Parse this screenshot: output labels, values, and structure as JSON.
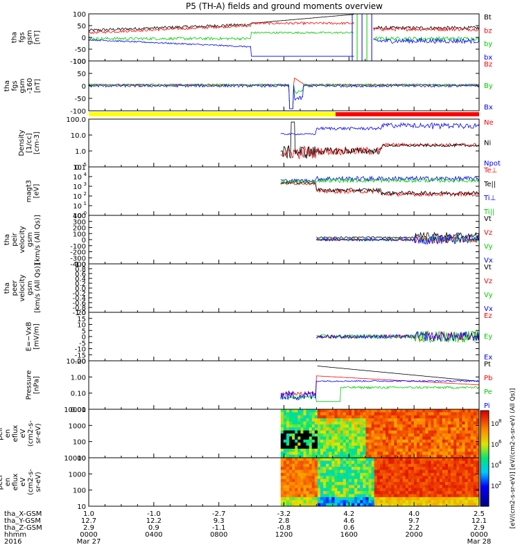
{
  "title": "P5 (TH-A) fields and ground moments overview",
  "colors": {
    "black": "#000000",
    "red": "#ff0000",
    "green": "#00cc00",
    "blue": "#0000ff",
    "yellow": "#ffff00"
  },
  "chart_data": [
    {
      "type": "line",
      "id": "fgs",
      "ylabel_lines": [
        "tha",
        "fgs",
        "gsm",
        "[nT]"
      ],
      "yticks": [
        "100",
        "50",
        "0",
        "-50",
        "-100"
      ],
      "ylim": [
        -100,
        100
      ],
      "series": [
        {
          "name": "Bt",
          "color": "black"
        },
        {
          "name": "bz",
          "color": "red"
        },
        {
          "name": "by",
          "color": "green"
        },
        {
          "name": "bx",
          "color": "blue"
        }
      ]
    },
    {
      "type": "line",
      "id": "fgs_dsl",
      "ylabel_lines": [
        "tha",
        "fgs",
        "gsm",
        "-160",
        "[nT]"
      ],
      "yticks": [
        "100",
        "50",
        "0",
        "-50",
        "-100"
      ],
      "ylim": [
        -120,
        120
      ],
      "series": [
        {
          "name": "Bz",
          "color": "red"
        },
        {
          "name": "By",
          "color": "green"
        },
        {
          "name": "Bx",
          "color": "blue"
        }
      ]
    },
    {
      "type": "line",
      "id": "density",
      "ylabel_lines": [
        "Density",
        "[1/cc]",
        "[cm-3]"
      ],
      "yticks": [
        "100.0",
        "10.0",
        "1.0",
        "0.1"
      ],
      "ylog": true,
      "ylim": [
        0.05,
        200
      ],
      "series": [
        {
          "name": "Ne",
          "color": "red"
        },
        {
          "name": "Ni",
          "color": "black"
        },
        {
          "name": "Npot",
          "color": "blue"
        }
      ]
    },
    {
      "type": "line",
      "id": "temp",
      "ylabel_lines": [
        "magt3",
        "[eV]"
      ],
      "yticks": [
        "10^5",
        "10^4",
        "10^3",
        "10^2",
        "10^1",
        "10^0"
      ],
      "ylog": true,
      "ylim": [
        1,
        100000
      ],
      "series": [
        {
          "name": "Te⊥",
          "color": "red"
        },
        {
          "name": "Te||",
          "color": "black"
        },
        {
          "name": "Ti⊥",
          "color": "blue"
        },
        {
          "name": "Ti||",
          "color": "green"
        }
      ]
    },
    {
      "type": "line",
      "id": "vel_i",
      "ylabel_lines": [
        "tha",
        "peir",
        "velocity",
        "gsm",
        "[km/s (All Qs)]"
      ],
      "yticks": [
        "400",
        "300",
        "200",
        "100",
        "0",
        "-100",
        "-200",
        "-300",
        "-400"
      ],
      "ylim": [
        -400,
        400
      ],
      "series": [
        {
          "name": "Vt",
          "color": "black"
        },
        {
          "name": "Vz",
          "color": "red"
        },
        {
          "name": "Vy",
          "color": "green"
        },
        {
          "name": "Vx",
          "color": "blue"
        }
      ]
    },
    {
      "type": "line",
      "id": "vel_e",
      "ylabel_lines": [
        "tha",
        "peer",
        "velocity",
        "gsm",
        "[km/s (All Qs)]"
      ],
      "yticks": [
        "1.0",
        "0.8",
        "0.6",
        "0.4",
        "0.2",
        "0.0",
        "-0.2",
        "-0.4",
        "-0.6",
        "-0.8",
        "-1.0"
      ],
      "ylim": [
        -1,
        1
      ],
      "series": [
        {
          "name": "Vt",
          "color": "black"
        },
        {
          "name": "Vz",
          "color": "red"
        },
        {
          "name": "Vy",
          "color": "green"
        },
        {
          "name": "Vx",
          "color": "blue"
        }
      ]
    },
    {
      "type": "line",
      "id": "efield",
      "ylabel_lines": [
        "E=−VxB",
        "[mV/m]"
      ],
      "yticks": [
        "20",
        "15",
        "10",
        "5",
        "0",
        "-5",
        "-10",
        "-15",
        "-20"
      ],
      "ylim": [
        -20,
        20
      ],
      "series": [
        {
          "name": "Ez",
          "color": "red"
        },
        {
          "name": "Ey",
          "color": "green"
        },
        {
          "name": "Ex",
          "color": "blue"
        }
      ]
    },
    {
      "type": "line",
      "id": "pressure",
      "ylabel_lines": [
        "Pressure",
        "[nPa]"
      ],
      "yticks": [
        "10.00",
        "1.00",
        "0.10",
        "0.01"
      ],
      "ylog": true,
      "ylim": [
        0.005,
        30
      ],
      "series": [
        {
          "name": "Pt",
          "color": "black"
        },
        {
          "name": "Pb",
          "color": "red"
        },
        {
          "name": "Pe",
          "color": "green"
        },
        {
          "name": "Pi",
          "color": "blue"
        }
      ]
    },
    {
      "type": "heatmap",
      "id": "ion_spec",
      "ylabel_lines": [
        "tha",
        "peir",
        "en",
        "eflux",
        "eV",
        "(cm2-s-",
        "sr-eV)"
      ],
      "yticks": [
        "10000",
        "1000",
        "100",
        "10"
      ],
      "ylog": true
    },
    {
      "type": "heatmap",
      "id": "ele_spec",
      "ylabel_lines": [
        "tha",
        "peer",
        "en",
        "eflux",
        "eV",
        "(cm2-s-",
        "sr-eV)"
      ],
      "yticks": [
        "10000",
        "1000",
        "100",
        "10"
      ],
      "ylog": true
    }
  ],
  "colorbar": {
    "ticks": [
      "10^8",
      "10^6",
      "10^4",
      "10^2"
    ],
    "label": "[eV/(cm2-s-sr-eV)] [eV/(cm2-s-sr-eV) (All Qs)]"
  },
  "xaxis": {
    "row_labels": [
      "tha_X-GSM",
      "tha_Y-GSM",
      "tha_Z-GSM",
      "hhmm",
      "2016"
    ],
    "ticks": [
      {
        "x": "1.0",
        "y": "12.7",
        "z": "2.9",
        "hhmm": "0000",
        "date": "Mar 27"
      },
      {
        "x": "-1.0",
        "y": "12.2",
        "z": "0.9",
        "hhmm": "0400",
        "date": ""
      },
      {
        "x": "-2.7",
        "y": "9.3",
        "z": "-1.1",
        "hhmm": "0800",
        "date": ""
      },
      {
        "x": "-3.2",
        "y": "2.8",
        "z": "-0.8",
        "hhmm": "1200",
        "date": ""
      },
      {
        "x": "4.2",
        "y": "4.6",
        "z": "0.6",
        "hhmm": "1600",
        "date": ""
      },
      {
        "x": "4.0",
        "y": "9.7",
        "z": "2.2",
        "hhmm": "2000",
        "date": ""
      },
      {
        "x": "2.5",
        "y": "12.1",
        "z": "2.9",
        "hhmm": "0000",
        "date": "Mar 28"
      }
    ]
  }
}
